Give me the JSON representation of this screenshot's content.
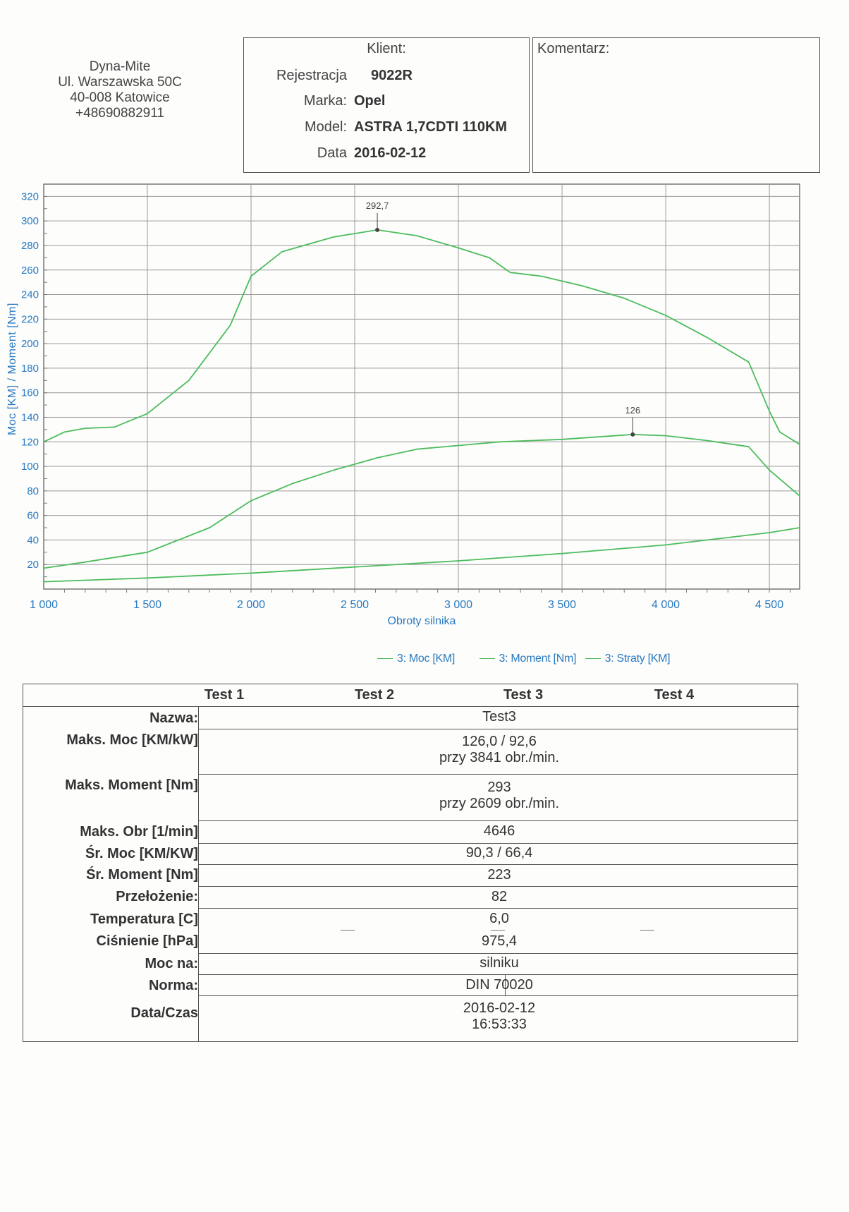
{
  "header": {
    "address": [
      "Dyna-Mite",
      "Ul. Warszawska 50C",
      "40-008 Katowice",
      "+48690882911"
    ],
    "client": {
      "title": "Klient:",
      "rows": [
        {
          "label": "Rejestracja",
          "value": "9022R"
        },
        {
          "label": "Marka:",
          "value": "Opel"
        },
        {
          "label": "Model:",
          "value": "ASTRA 1,7CDTI 110KM"
        },
        {
          "label": "Data",
          "value": "2016-02-12"
        }
      ]
    },
    "comment": {
      "title": "Komentarz:"
    }
  },
  "chart_data": {
    "type": "line",
    "ylabel": "Moc [KM] / Moment [Nm]",
    "xlabel": "Obroty silnika",
    "xlim": [
      1000,
      4646
    ],
    "ylim": [
      0,
      330
    ],
    "xticks": [
      1000,
      1500,
      2000,
      2500,
      3000,
      3500,
      4000,
      4500
    ],
    "xtick_labels": [
      "1 000",
      "1 500",
      "2 000",
      "2 500",
      "3 000",
      "3 500",
      "4 000",
      "4 500"
    ],
    "yticks": [
      20,
      40,
      60,
      80,
      100,
      120,
      140,
      160,
      180,
      200,
      220,
      240,
      260,
      280,
      300,
      320
    ],
    "grid": true,
    "series": [
      {
        "name": "3: Moc [KM]",
        "color": "#4cbc5c",
        "x": [
          1000,
          1200,
          1500,
          1800,
          2000,
          2200,
          2400,
          2609,
          2800,
          3000,
          3200,
          3500,
          3800,
          3841,
          4000,
          4200,
          4400,
          4500,
          4646
        ],
        "y": [
          17,
          22,
          30,
          50,
          72,
          86,
          97,
          107,
          114,
          117,
          120,
          122,
          125.5,
          126,
          125,
          121,
          116,
          97,
          76
        ],
        "peak": {
          "x": 3841,
          "y": 126,
          "label": "126"
        }
      },
      {
        "name": "3: Moment [Nm]",
        "color": "#4cbc5c",
        "x": [
          1000,
          1100,
          1200,
          1340,
          1500,
          1700,
          1900,
          2000,
          2150,
          2400,
          2609,
          2800,
          3000,
          3150,
          3250,
          3400,
          3600,
          3800,
          4000,
          4200,
          4400,
          4500,
          4550,
          4646
        ],
        "y": [
          120,
          128,
          131,
          132,
          143,
          170,
          215,
          255,
          275,
          287,
          292.7,
          288,
          278,
          270,
          258,
          255,
          247,
          237,
          223,
          205,
          185,
          145,
          128,
          118
        ],
        "peak": {
          "x": 2609,
          "y": 292.7,
          "label": "292,7"
        }
      },
      {
        "name": "3: Straty [KM]",
        "color": "#4cbc5c",
        "x": [
          1000,
          1500,
          2000,
          2500,
          3000,
          3500,
          4000,
          4500,
          4646
        ],
        "y": [
          6,
          9,
          13,
          18,
          23,
          29,
          36,
          46,
          50
        ]
      }
    ]
  },
  "results": {
    "columns": [
      "Test 1",
      "Test 2",
      "Test 3",
      "Test 4"
    ],
    "rows": [
      {
        "label": "Nazwa:",
        "value": [
          "Test3"
        ]
      },
      {
        "label": "Maks. Moc [KM/kW]",
        "value": [
          "126,0 / 92,6",
          "przy 3841 obr./min."
        ]
      },
      {
        "label": "Maks. Moment [Nm]",
        "value": [
          "293",
          "przy 2609 obr./min."
        ]
      },
      {
        "label": "Maks. Obr [1/min]",
        "value": [
          "4646"
        ]
      },
      {
        "label": "Śr. Moc [KM/KW]",
        "value": [
          "90,3 / 66,4"
        ]
      },
      {
        "label": "Śr. Moment [Nm]",
        "value": [
          "223"
        ]
      },
      {
        "label": "Przełożenie:",
        "value": [
          "82"
        ]
      },
      {
        "label": "Temperatura [C]",
        "value": [
          "6,0"
        ]
      },
      {
        "label": "Ciśnienie [hPa]",
        "value": [
          "975,4"
        ]
      },
      {
        "label": "Moc na:",
        "value": [
          "silniku"
        ]
      },
      {
        "label": "Norma:",
        "value": [
          "DIN 70020"
        ]
      },
      {
        "label": "Data/Czas",
        "value": [
          "2016-02-12",
          "16:53:33"
        ]
      }
    ]
  }
}
